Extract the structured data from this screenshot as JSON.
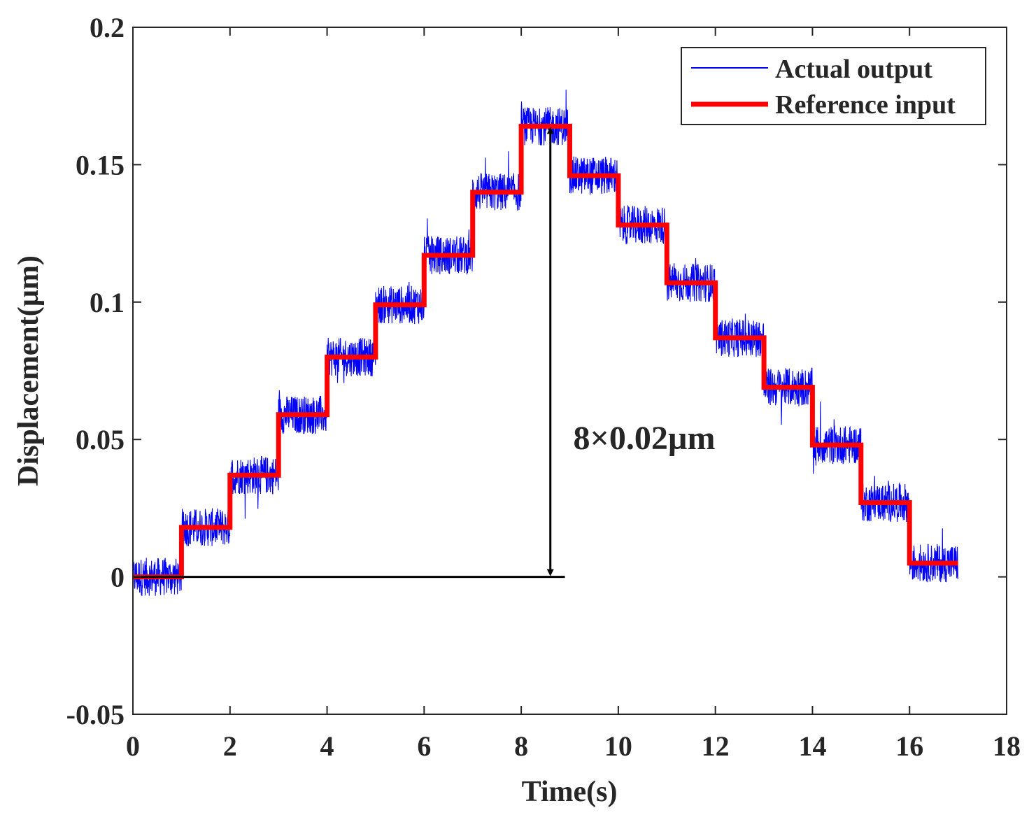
{
  "chart_data": {
    "type": "line",
    "title": "",
    "xlabel": "Time(s)",
    "ylabel": "Displacement(µm)",
    "xlim": [
      0,
      18
    ],
    "ylim": [
      -0.05,
      0.2
    ],
    "x_ticks": [
      0,
      2,
      4,
      6,
      8,
      10,
      12,
      14,
      16,
      18
    ],
    "x_tick_labels": [
      "0",
      "2",
      "4",
      "6",
      "8",
      "10",
      "12",
      "14",
      "16",
      "18"
    ],
    "y_ticks": [
      -0.05,
      0,
      0.05,
      0.1,
      0.15,
      0.2
    ],
    "y_tick_labels": [
      "-0.05",
      "0",
      "0.05",
      "0.1",
      "0.15",
      "0.2"
    ],
    "grid": false,
    "legend_position": "top-right",
    "series": [
      {
        "name": "Actual output",
        "color": "#0000ff",
        "style": "thin noisy line around reference, noise amplitude ~0.01",
        "step_times": [
          0,
          1,
          2,
          3,
          4,
          5,
          6,
          7,
          8,
          9,
          10,
          11,
          12,
          13,
          14,
          15,
          16,
          17
        ],
        "levels": [
          0.0,
          0.018,
          0.037,
          0.059,
          0.08,
          0.099,
          0.117,
          0.14,
          0.164,
          0.146,
          0.128,
          0.107,
          0.087,
          0.069,
          0.048,
          0.027,
          0.005
        ]
      },
      {
        "name": "Reference input",
        "color": "#ff0000",
        "style": "thick staircase",
        "step_times": [
          0,
          1,
          2,
          3,
          4,
          5,
          6,
          7,
          8,
          9,
          10,
          11,
          12,
          13,
          14,
          15,
          16,
          17
        ],
        "levels": [
          0.0,
          0.018,
          0.037,
          0.059,
          0.08,
          0.099,
          0.117,
          0.14,
          0.164,
          0.146,
          0.128,
          0.107,
          0.087,
          0.069,
          0.048,
          0.027,
          0.005
        ]
      }
    ],
    "annotations": [
      {
        "text": "8×0.02µm",
        "type": "double-arrow",
        "arrow_x": 8.6,
        "arrow_from_y": 0,
        "arrow_to_y": 0.164,
        "baseline_from_x": 0,
        "baseline_to_x": 8.9,
        "baseline_y": 0,
        "label_x": 8.9,
        "label_y": 0.05
      }
    ]
  }
}
